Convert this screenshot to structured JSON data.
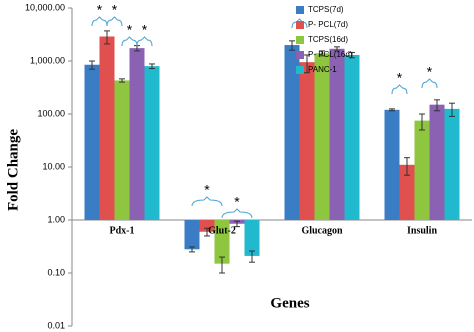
{
  "chart_data": {
    "type": "bar",
    "x_label": "Genes",
    "y_label": "Fold Change",
    "categories": [
      "Pdx-1",
      "Glut-2",
      "Glucagon",
      "Insulin"
    ],
    "log_scale": true,
    "baseline": 1,
    "ylim": [
      0.01,
      10000
    ],
    "yticks": [
      {
        "value": 0.01,
        "label": "0.01"
      },
      {
        "value": 0.1,
        "label": "0.10"
      },
      {
        "value": 1,
        "label": "1.00"
      },
      {
        "value": 10,
        "label": "10.00"
      },
      {
        "value": 100,
        "label": "100.00"
      },
      {
        "value": 1000,
        "label": "1,000.00"
      },
      {
        "value": 10000,
        "label": "10,000.00"
      }
    ],
    "legend_position": "upper center",
    "series": [
      {
        "name": "TCPS(7d)",
        "color": "#3b7dc4",
        "values": [
          850,
          0.28,
          2000,
          120
        ],
        "errors": [
          150,
          0.03,
          400,
          5
        ]
      },
      {
        "name": "P- PCL(7d)",
        "color": "#e0504f",
        "values": [
          2900,
          0.6,
          950,
          11
        ],
        "errors": [
          800,
          0.1,
          350,
          4
        ]
      },
      {
        "name": "TCPS(16d)",
        "color": "#8fc640",
        "values": [
          430,
          0.15,
          1400,
          75
        ],
        "errors": [
          30,
          0.05,
          150,
          25
        ]
      },
      {
        "name": "P- PCL(16d)",
        "color": "#8b62b3",
        "values": [
          1750,
          0.85,
          1700,
          150
        ],
        "errors": [
          200,
          0.1,
          150,
          35
        ]
      },
      {
        "name": "PANC-1",
        "color": "#21b9cd",
        "values": [
          800,
          0.21,
          1300,
          125
        ],
        "errors": [
          80,
          0.05,
          150,
          35
        ]
      }
    ],
    "significance": [
      "*",
      "*",
      "*",
      "*",
      "*",
      "*",
      "*",
      "*",
      "*"
    ]
  }
}
